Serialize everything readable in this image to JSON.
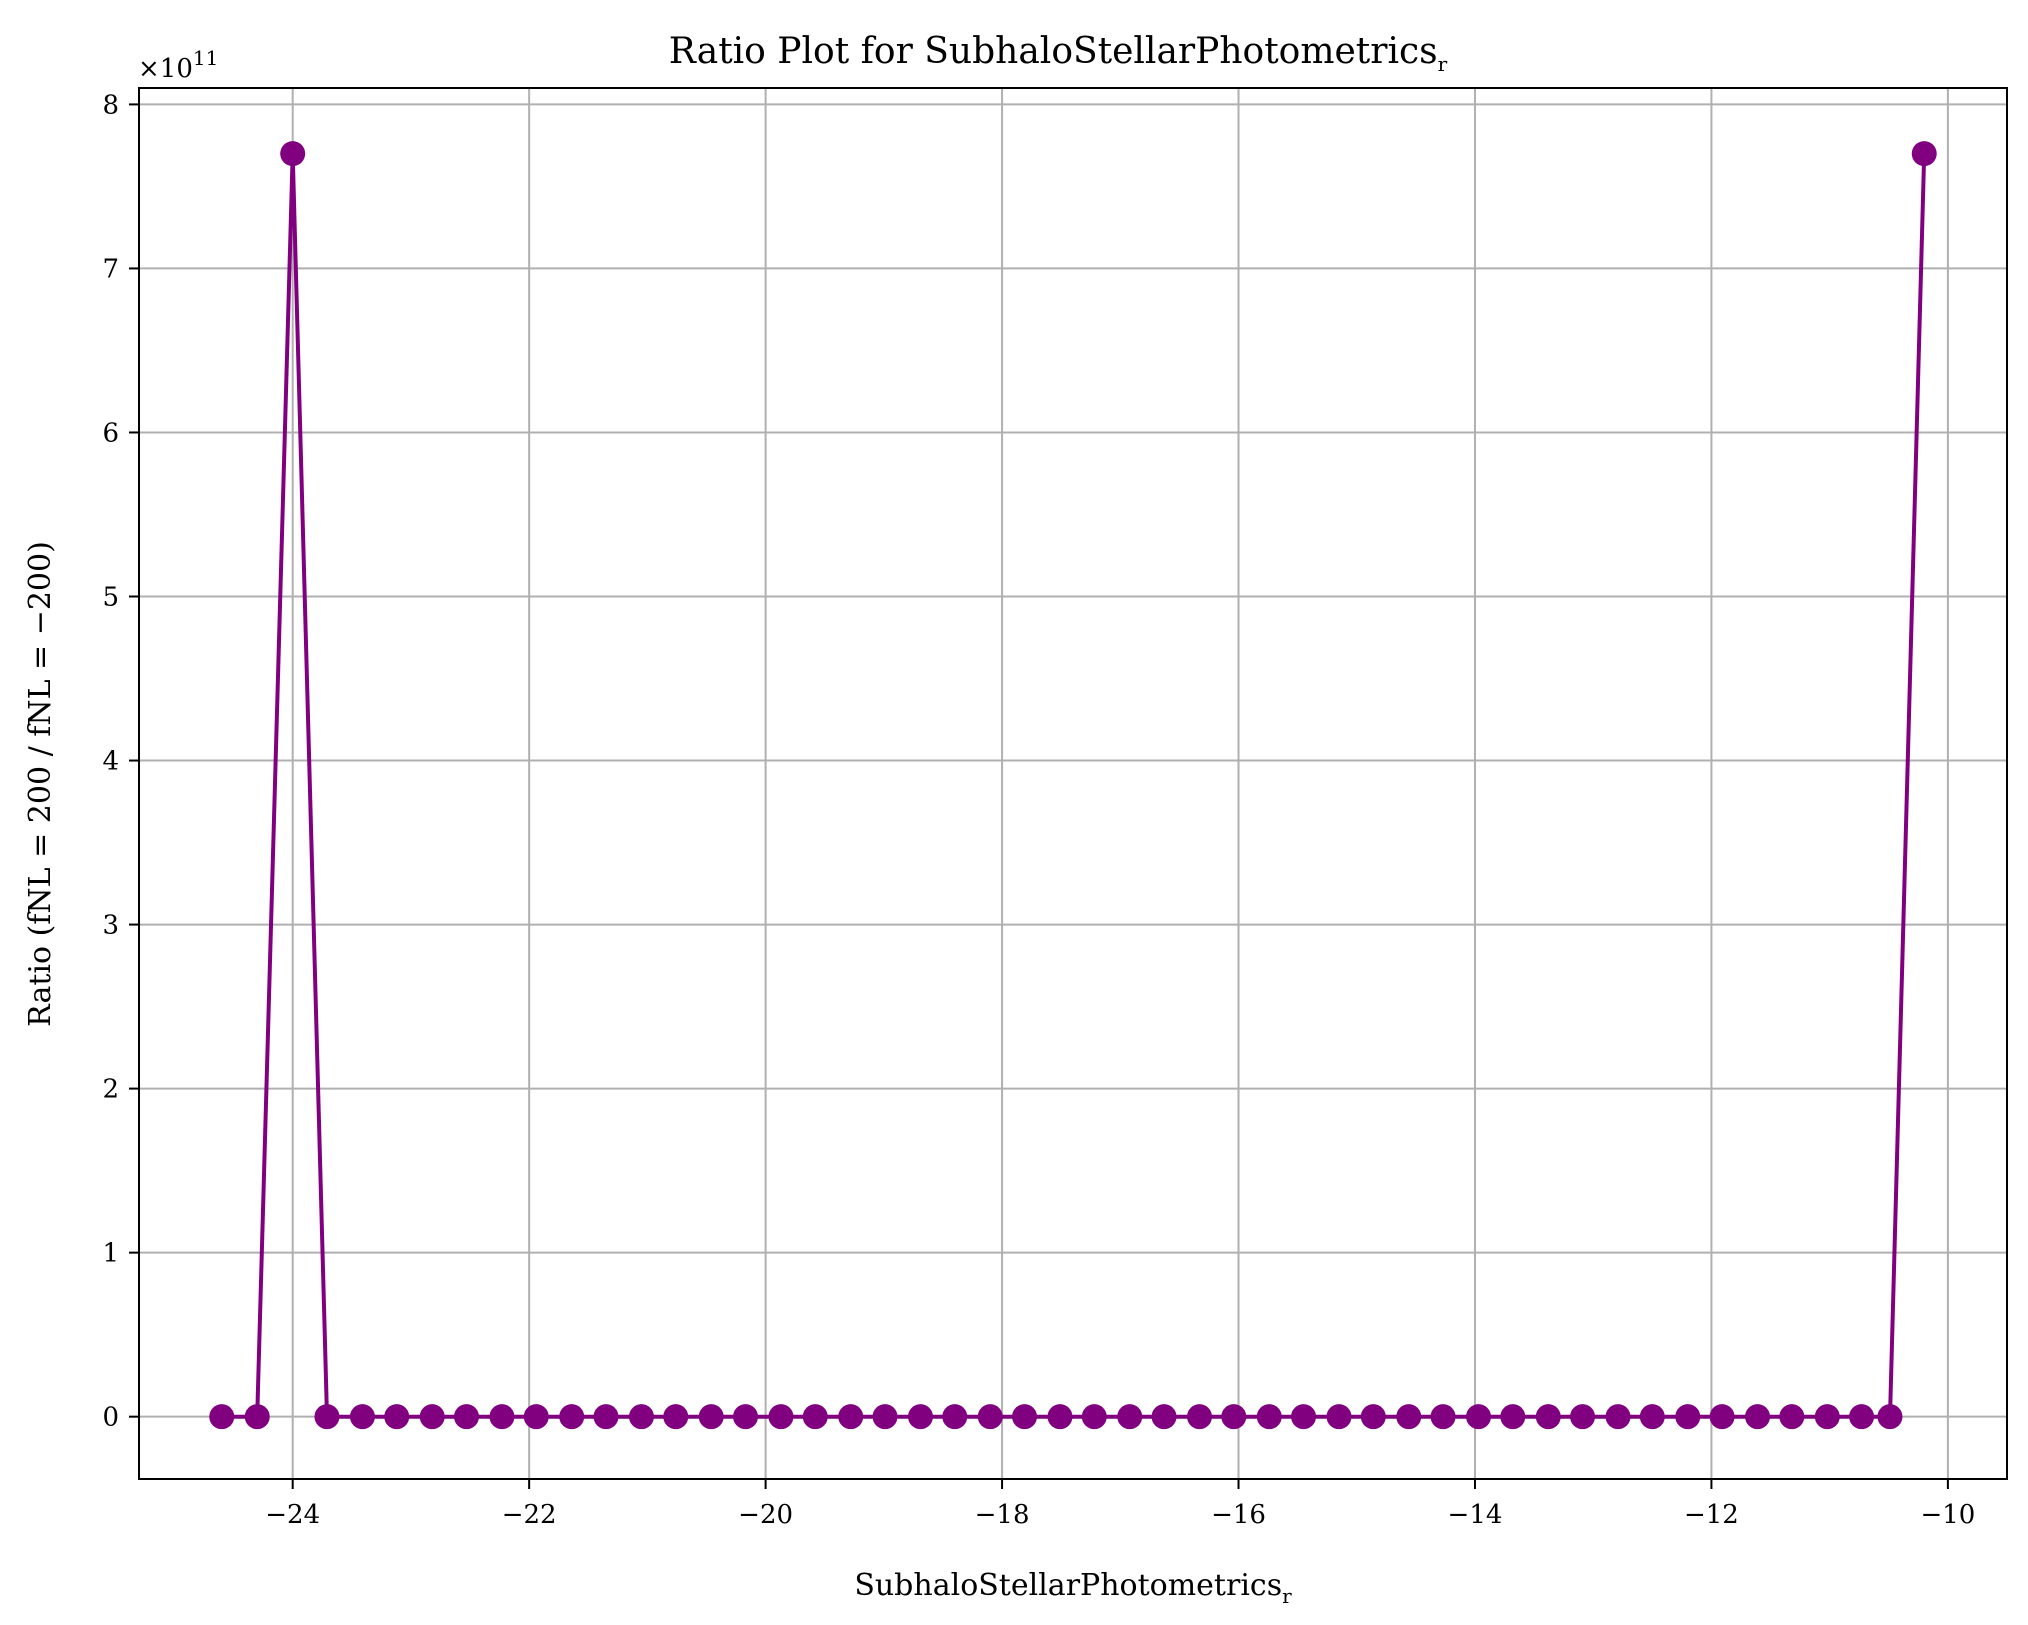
{
  "chart_data": {
    "type": "line",
    "title_main": "Ratio Plot for SubhaloStellarPhotometrics",
    "title_sub": "r",
    "xlabel_main": "SubhaloStellarPhotometrics",
    "xlabel_sub": "r",
    "ylabel": "Ratio (fNL = 200 / fNL = −200)",
    "y_multiplier_base": "×10",
    "y_multiplier_exp": "11",
    "xlim": [
      -25.3,
      -9.5
    ],
    "ylim": [
      -0.38,
      8.1
    ],
    "x_ticks": [
      -24,
      -22,
      -20,
      -18,
      -16,
      -14,
      -12,
      -10
    ],
    "x_tick_labels": [
      "−24",
      "−22",
      "−20",
      "−18",
      "−16",
      "−14",
      "−12",
      "−10"
    ],
    "y_ticks": [
      0,
      1,
      2,
      3,
      4,
      5,
      6,
      7,
      8
    ],
    "y_tick_labels": [
      "0",
      "1",
      "2",
      "3",
      "4",
      "5",
      "6",
      "7",
      "8"
    ],
    "grid": true,
    "line_color": "#800080",
    "series": [
      {
        "x": [
          -24.6,
          -24.3,
          -24.0,
          -23.71,
          -23.41,
          -23.12,
          -22.82,
          -22.53,
          -22.23,
          -21.94,
          -21.64,
          -21.35,
          -21.05,
          -20.76,
          -20.46,
          -20.17,
          -19.87,
          -19.58,
          -19.28,
          -18.99,
          -18.69,
          -18.4,
          -18.1,
          -17.81,
          -17.51,
          -17.22,
          -16.92,
          -16.63,
          -16.33,
          -16.04,
          -15.74,
          -15.45,
          -15.15,
          -14.86,
          -14.56,
          -14.27,
          -13.97,
          -13.68,
          -13.38,
          -13.09,
          -12.79,
          -12.5,
          -12.2,
          -11.91,
          -11.61,
          -11.32,
          -11.02,
          -10.73,
          -10.49,
          -10.2
        ],
        "y": [
          0,
          0,
          7.7,
          0,
          0,
          0,
          0,
          0,
          0,
          0,
          0,
          0,
          0,
          0,
          0,
          0,
          0,
          0,
          0,
          0,
          0,
          0,
          0,
          0,
          0,
          0,
          0,
          0,
          0,
          0,
          0,
          0,
          0,
          0,
          0,
          0,
          0,
          0,
          0,
          0,
          0,
          0,
          0,
          0,
          0,
          0,
          0,
          0,
          0,
          7.7
        ]
      }
    ]
  }
}
